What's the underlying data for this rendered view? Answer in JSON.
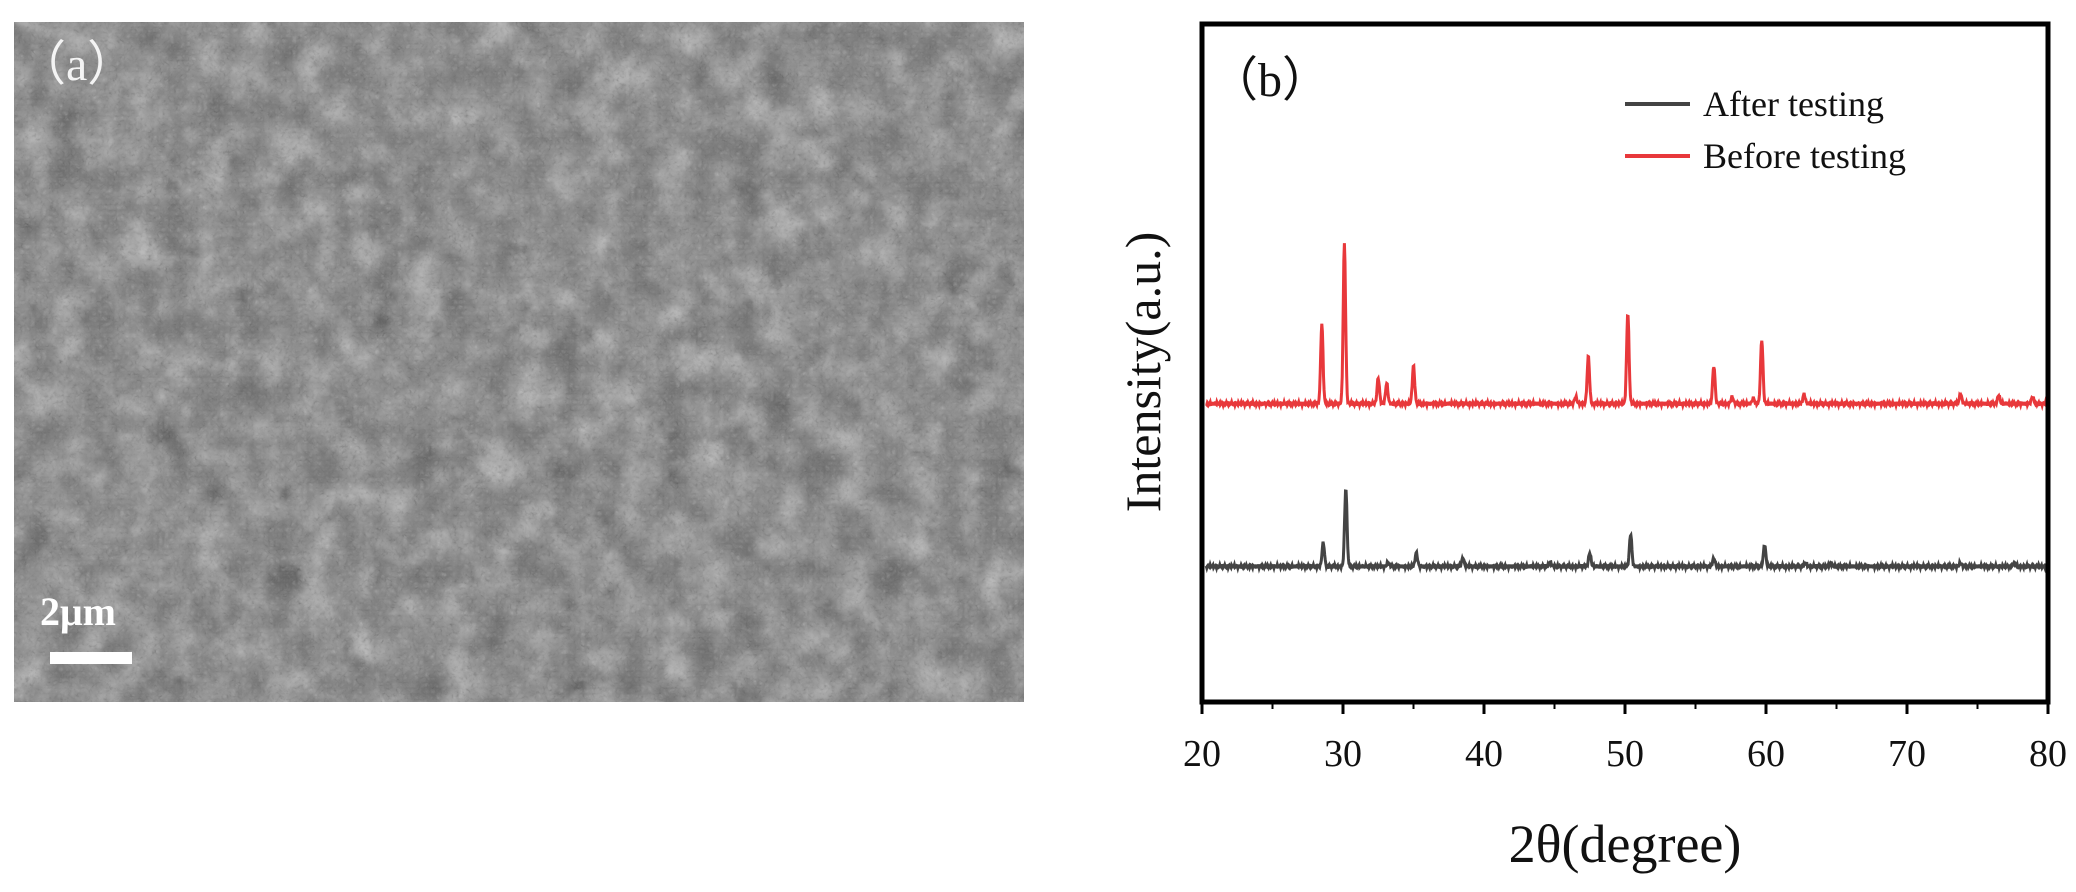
{
  "panel_a": {
    "label": "（a）",
    "scale_bar": "2μm"
  },
  "chart_data": {
    "type": "line",
    "panel_label": "（b）",
    "xlabel": "2θ(degree)",
    "ylabel": "Intensity(a.u.)",
    "xlim": [
      20,
      80
    ],
    "ylim": [
      0,
      10
    ],
    "x_ticks": [
      20,
      30,
      40,
      50,
      60,
      70,
      80
    ],
    "show_y_ticks": false,
    "grid": false,
    "legend_position": "top-right",
    "series": [
      {
        "name": "After testing",
        "color": "#444444",
        "baseline": 2.0,
        "peaks": [
          {
            "x": 28.6,
            "h": 0.35
          },
          {
            "x": 30.2,
            "h": 1.15
          },
          {
            "x": 33.2,
            "h": 0.06
          },
          {
            "x": 35.2,
            "h": 0.2
          },
          {
            "x": 38.5,
            "h": 0.12
          },
          {
            "x": 44.7,
            "h": 0.06
          },
          {
            "x": 47.5,
            "h": 0.2
          },
          {
            "x": 50.4,
            "h": 0.48
          },
          {
            "x": 56.3,
            "h": 0.12
          },
          {
            "x": 59.9,
            "h": 0.32
          },
          {
            "x": 62.8,
            "h": 0.05
          },
          {
            "x": 64.6,
            "h": 0.05
          },
          {
            "x": 73.8,
            "h": 0.05
          },
          {
            "x": 77.6,
            "h": 0.05
          }
        ]
      },
      {
        "name": "Before testing",
        "color": "#e8383b",
        "baseline": 4.4,
        "peaks": [
          {
            "x": 28.5,
            "h": 1.18
          },
          {
            "x": 30.1,
            "h": 2.35
          },
          {
            "x": 32.5,
            "h": 0.38
          },
          {
            "x": 33.1,
            "h": 0.3
          },
          {
            "x": 35.0,
            "h": 0.56
          },
          {
            "x": 46.5,
            "h": 0.1
          },
          {
            "x": 47.4,
            "h": 0.7
          },
          {
            "x": 50.2,
            "h": 1.34
          },
          {
            "x": 56.3,
            "h": 0.56
          },
          {
            "x": 57.6,
            "h": 0.1
          },
          {
            "x": 59.1,
            "h": 0.08
          },
          {
            "x": 59.7,
            "h": 0.95
          },
          {
            "x": 62.7,
            "h": 0.14
          },
          {
            "x": 73.8,
            "h": 0.14
          },
          {
            "x": 76.5,
            "h": 0.12
          },
          {
            "x": 78.9,
            "h": 0.1
          }
        ]
      }
    ]
  }
}
